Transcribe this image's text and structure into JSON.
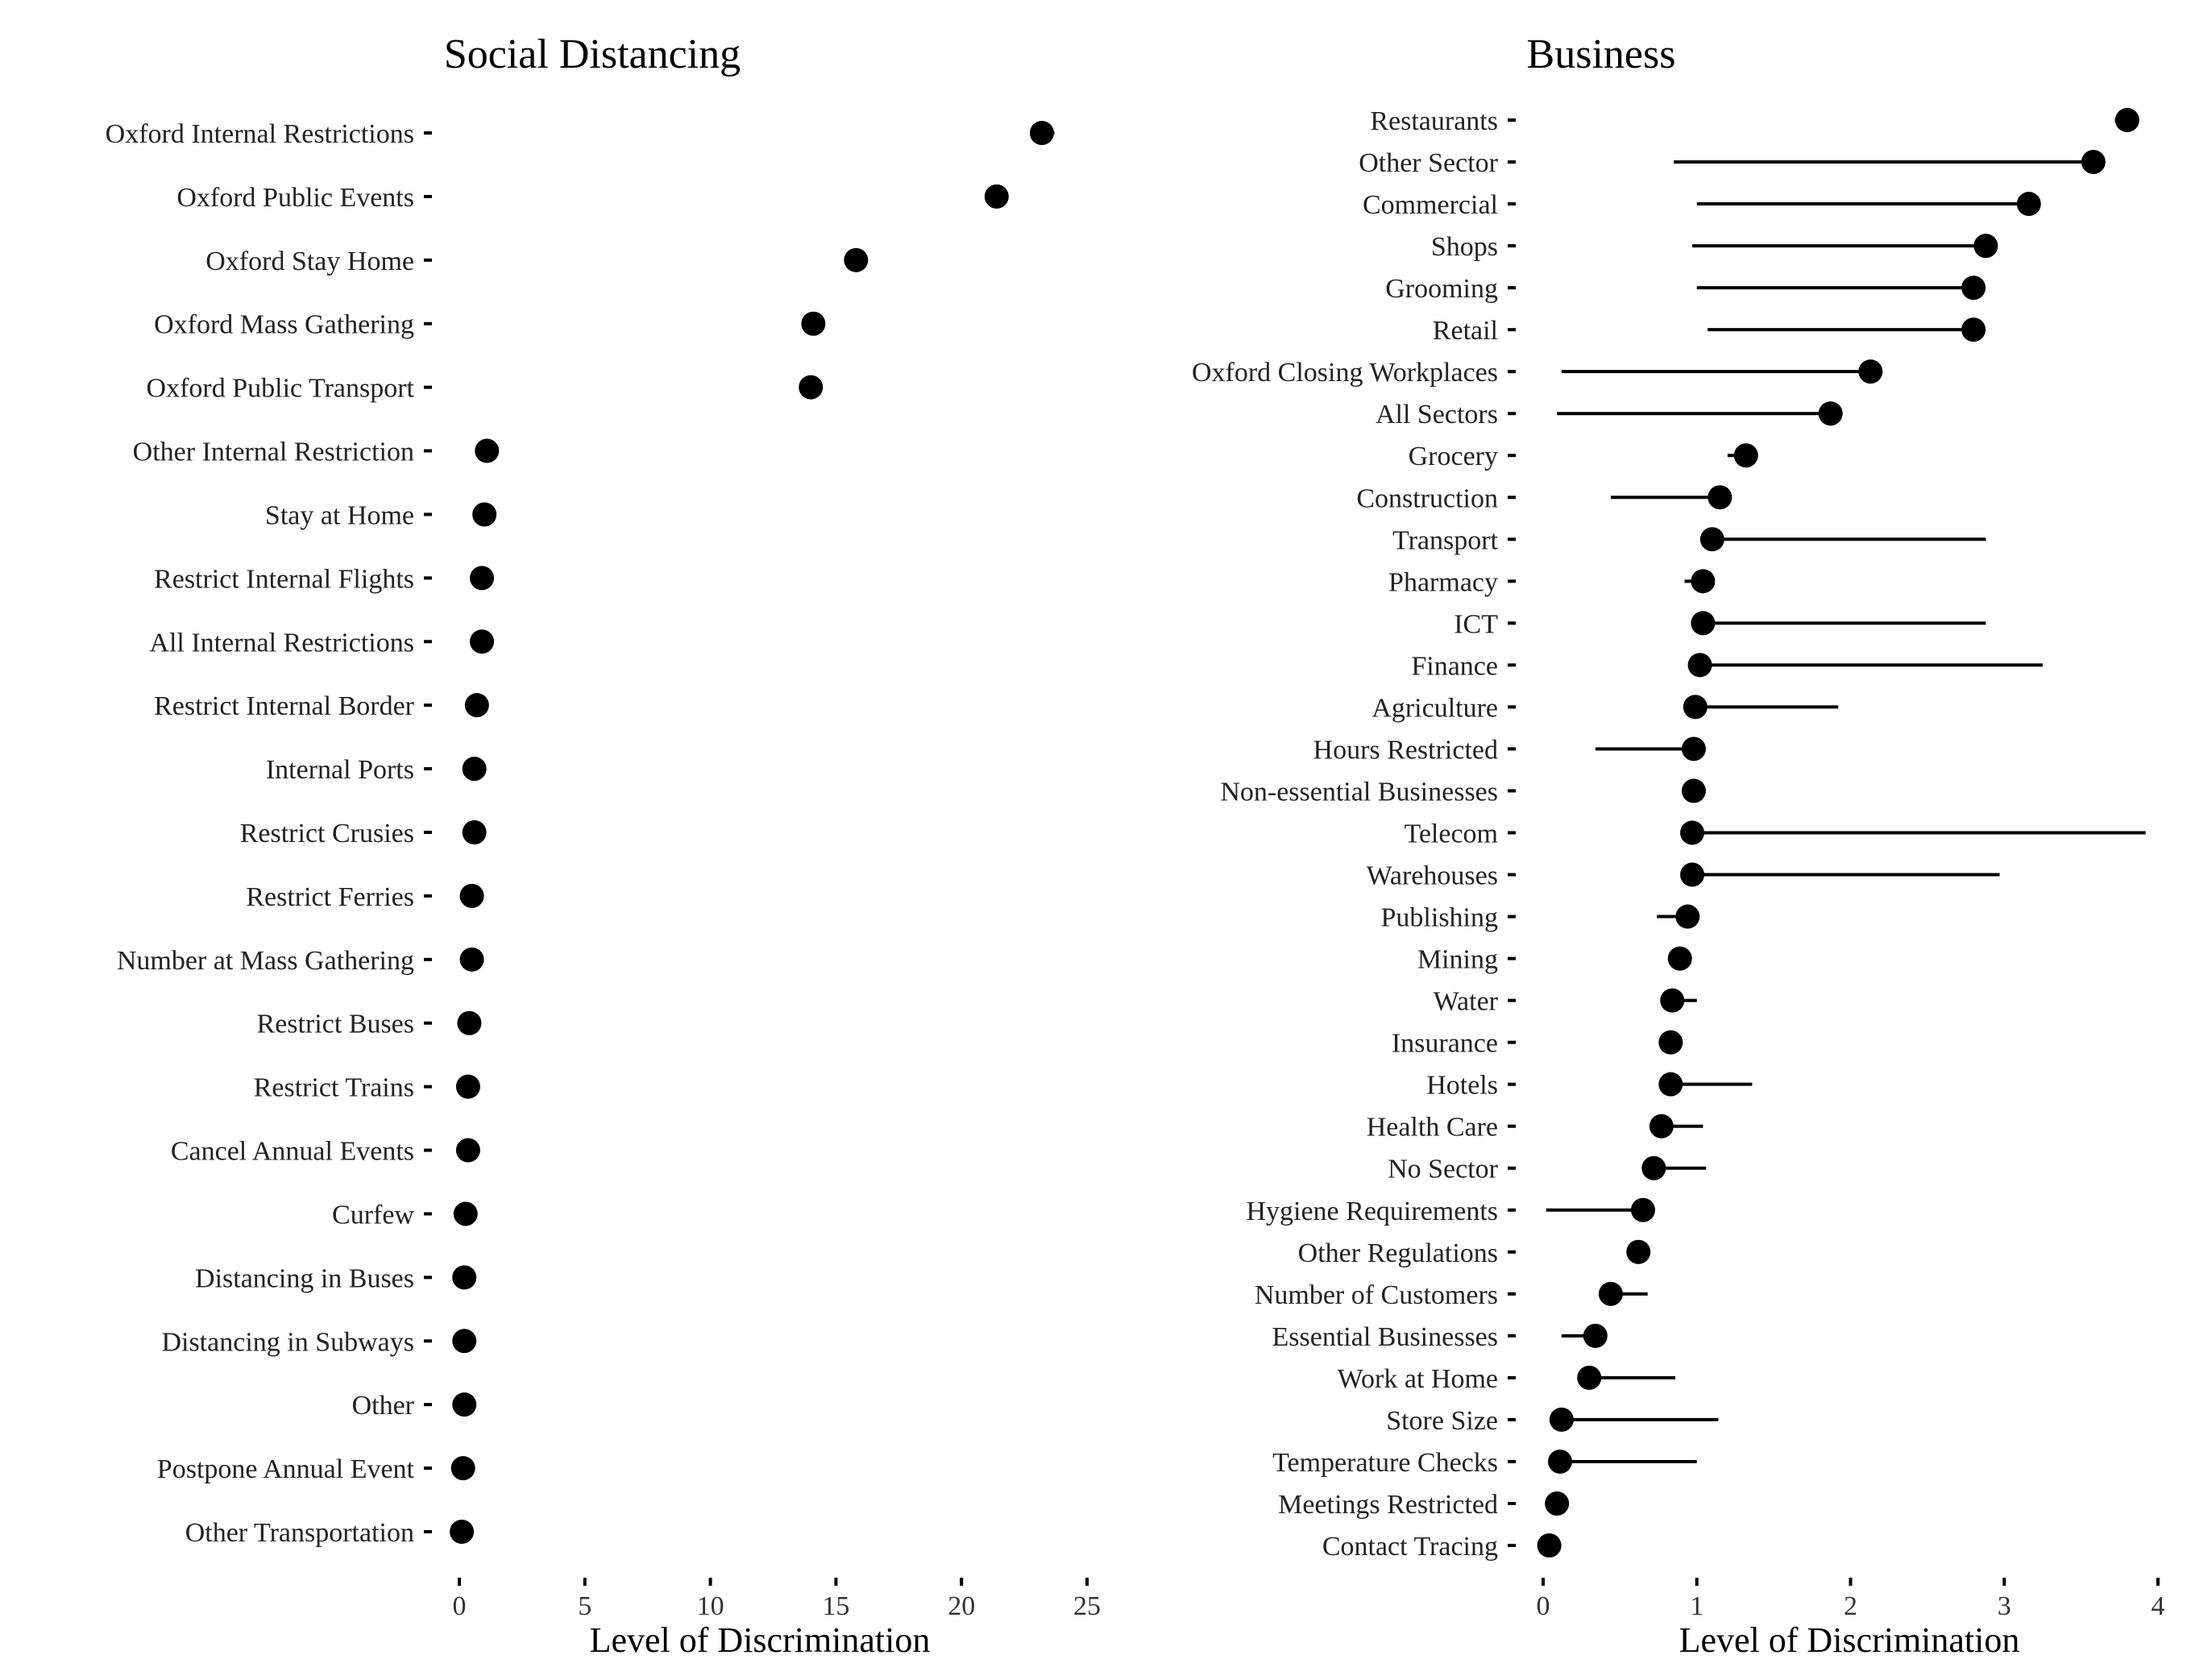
{
  "chart_data": [
    {
      "type": "dot",
      "title": "Social Distancing",
      "xlabel": "Level of Discrimination",
      "xlim": [
        0,
        25
      ],
      "xticks": [
        "0",
        "5",
        "10",
        "15",
        "20",
        "25"
      ],
      "grid": false,
      "categories": [
        "Oxford Internal Restrictions",
        "Oxford Public Events",
        "Oxford Stay Home",
        "Oxford Mass Gathering",
        "Oxford Public Transport",
        "Other Internal Restriction",
        "Stay at Home",
        "Restrict Internal Flights",
        "All Internal Restrictions",
        "Restrict Internal Border",
        "Internal Ports",
        "Restrict Crusies",
        "Restrict Ferries",
        "Number at Mass Gathering",
        "Restrict Buses",
        "Restrict Trains",
        "Cancel Annual Events",
        "Curfew",
        "Distancing in Buses",
        "Distancing in Subways",
        "Other",
        "Postpone Annual Event",
        "Other Transportation"
      ],
      "values": [
        23.2,
        21.4,
        15.8,
        14.1,
        14.0,
        1.1,
        1.0,
        0.9,
        0.9,
        0.7,
        0.6,
        0.6,
        0.5,
        0.5,
        0.4,
        0.35,
        0.35,
        0.25,
        0.2,
        0.2,
        0.2,
        0.15,
        0.1
      ],
      "lower": [
        22.8,
        21.4,
        15.8,
        14.1,
        14.0,
        1.1,
        1.0,
        0.9,
        0.9,
        0.7,
        0.6,
        0.6,
        0.5,
        0.5,
        0.4,
        0.35,
        0.35,
        0.25,
        0.2,
        0.2,
        0.2,
        0.15,
        0.1
      ],
      "upper": [
        23.7,
        21.4,
        15.8,
        14.1,
        14.0,
        1.1,
        1.0,
        0.9,
        0.9,
        0.7,
        0.6,
        0.6,
        0.5,
        0.5,
        0.4,
        0.35,
        0.35,
        0.25,
        0.2,
        0.2,
        0.2,
        0.15,
        0.1
      ]
    },
    {
      "type": "dot",
      "title": "Business",
      "xlabel": "Level of Discrimination",
      "xlim": [
        0,
        4
      ],
      "xticks": [
        "0",
        "1",
        "2",
        "3",
        "4"
      ],
      "grid": false,
      "categories": [
        "Restaurants",
        "Other Sector",
        "Commercial",
        "Shops",
        "Grooming",
        "Retail",
        "Oxford Closing Workplaces",
        "All Sectors",
        "Grocery",
        "Construction",
        "Transport",
        "Pharmacy",
        "ICT",
        "Finance",
        "Agriculture",
        "Hours Restricted",
        "Non-essential Businesses",
        "Telecom",
        "Warehouses",
        "Publishing",
        "Mining",
        "Water",
        "Insurance",
        "Hotels",
        "Health Care",
        "No Sector",
        "Hygiene Requirements",
        "Other Regulations",
        "Number of Customers",
        "Essential Businesses",
        "Work at Home",
        "Store Size",
        "Temperature Checks",
        "Meetings Restricted",
        "Contact Tracing"
      ],
      "values": [
        3.8,
        3.58,
        3.16,
        2.88,
        2.8,
        2.8,
        2.13,
        1.87,
        1.32,
        1.15,
        1.1,
        1.04,
        1.04,
        1.02,
        0.99,
        0.98,
        0.98,
        0.97,
        0.97,
        0.94,
        0.89,
        0.84,
        0.83,
        0.83,
        0.77,
        0.72,
        0.65,
        0.62,
        0.44,
        0.34,
        0.3,
        0.12,
        0.11,
        0.09,
        0.04
      ],
      "lower": [
        3.72,
        0.85,
        1.0,
        0.97,
        1.0,
        1.07,
        0.12,
        0.09,
        1.2,
        0.44,
        1.1,
        0.92,
        1.04,
        1.02,
        0.99,
        0.34,
        0.98,
        0.97,
        0.97,
        0.74,
        0.89,
        0.84,
        0.83,
        0.83,
        0.77,
        0.72,
        0.02,
        0.62,
        0.44,
        0.12,
        0.3,
        0.12,
        0.11,
        0.09,
        0.04
      ],
      "upper": [
        3.8,
        3.58,
        3.16,
        2.88,
        2.8,
        2.8,
        2.13,
        1.87,
        1.32,
        1.15,
        2.88,
        1.04,
        2.88,
        3.25,
        1.92,
        0.98,
        0.98,
        3.92,
        2.97,
        0.94,
        0.89,
        1.0,
        0.83,
        1.36,
        1.04,
        1.06,
        0.65,
        0.62,
        0.68,
        0.34,
        0.86,
        1.14,
        1.0,
        0.09,
        0.04
      ]
    }
  ]
}
